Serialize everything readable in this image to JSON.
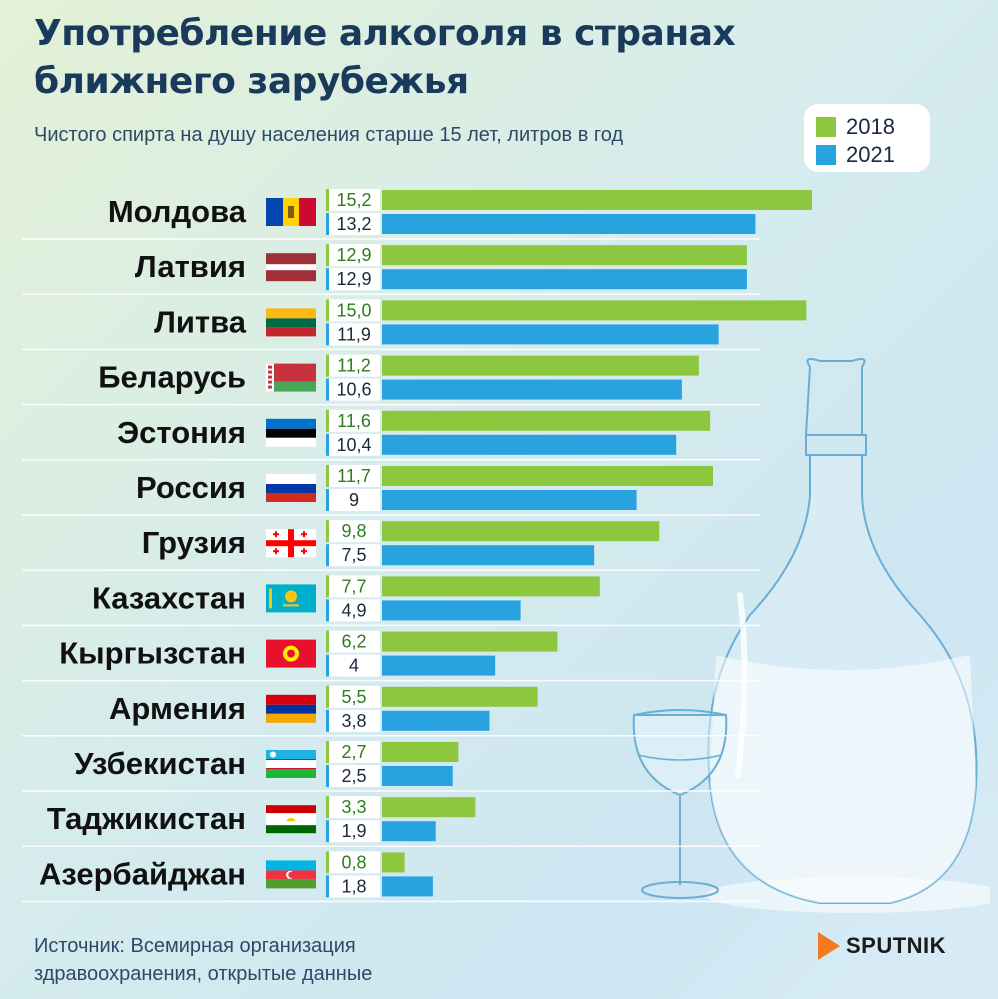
{
  "title_line1": "Употребление алкоголя в странах",
  "title_line2": "ближнего зарубежья",
  "subtitle": "Чистого спирта на душу населения старше 15 лет, литров в год",
  "source_line1": "Источник: Всемирная организация",
  "source_line2": "здравоохранения, открытые данные",
  "brand": "SPUTNIK",
  "colors": {
    "s2018": "#8dc63f",
    "s2021": "#29a3e0",
    "label2018": "#2e7d1f",
    "label2021": "#1a2a3a"
  },
  "chart_data": {
    "type": "bar",
    "orientation": "horizontal",
    "title": "Употребление алкоголя в странах ближнего зарубежья",
    "xlabel": "",
    "ylabel": "",
    "xlim": [
      0,
      15.2
    ],
    "categories": [
      "Молдова",
      "Латвия",
      "Литва",
      "Беларусь",
      "Эстония",
      "Россия",
      "Грузия",
      "Казахстан",
      "Кыргызстан",
      "Армения",
      "Узбекистан",
      "Таджикистан",
      "Азербайджан"
    ],
    "series": [
      {
        "name": "2018",
        "values": [
          15.2,
          12.9,
          15.0,
          11.2,
          11.6,
          11.7,
          9.8,
          7.7,
          6.2,
          5.5,
          2.7,
          3.3,
          0.8
        ],
        "labels": [
          "15,2",
          "12,9",
          "15,0",
          "11,2",
          "11,6",
          "11,7",
          "9,8",
          "7,7",
          "6,2",
          "5,5",
          "2,7",
          "3,3",
          "0,8"
        ]
      },
      {
        "name": "2021",
        "values": [
          13.2,
          12.9,
          11.9,
          10.6,
          10.4,
          9,
          7.5,
          4.9,
          4,
          3.8,
          2.5,
          1.9,
          1.8
        ],
        "labels": [
          "13,2",
          "12,9",
          "11,9",
          "10,6",
          "10,4",
          "9",
          "7,5",
          "4,9",
          "4",
          "3,8",
          "2,5",
          "1,9",
          "1,8"
        ]
      }
    ]
  }
}
